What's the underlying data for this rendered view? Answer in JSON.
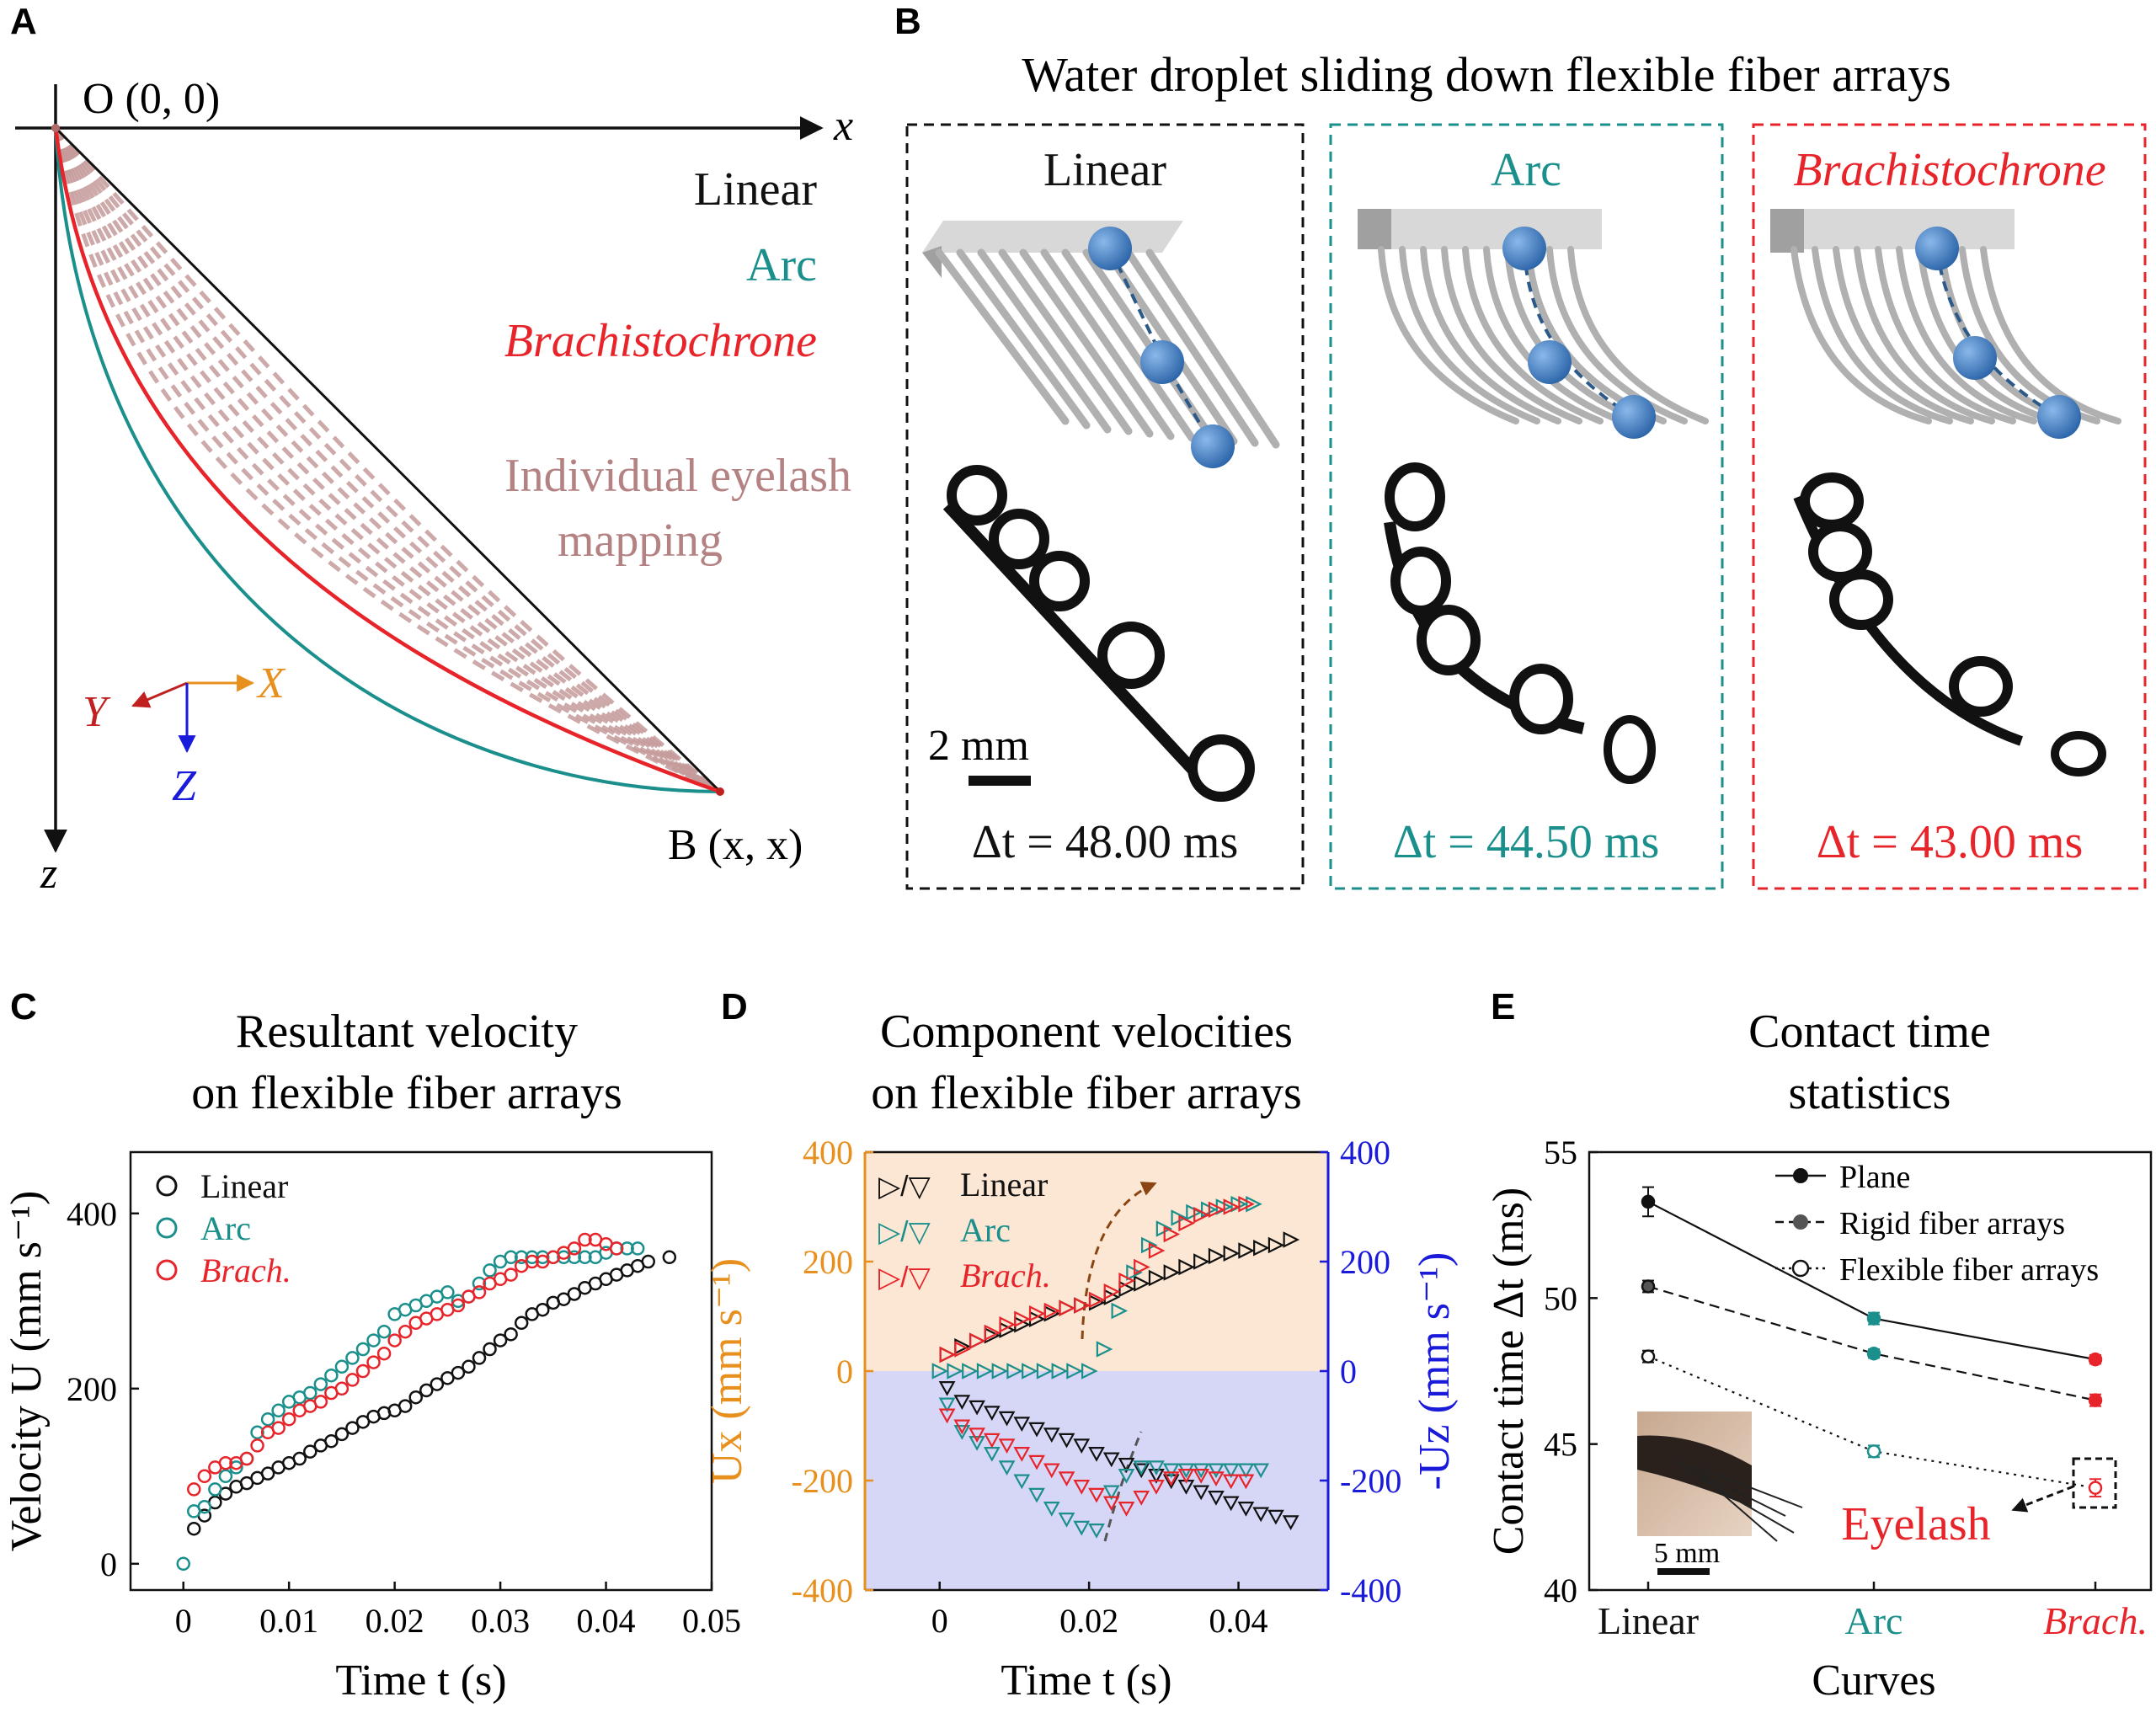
{
  "colors": {
    "black": "#111111",
    "teal": "#1a8f8c",
    "red": "#e8242b",
    "orange": "#e8901e",
    "blue": "#1a1adb",
    "mauve": "#b48282",
    "gray": "#555555",
    "orangeBg": "#fbe7d3",
    "blueBg": "#d6d6f7"
  },
  "panelA": {
    "letter": "A",
    "origin": "O (0, 0)",
    "xaxis": "x",
    "zaxis": "z",
    "endpoint": "B (x, x)",
    "legend_linear": "Linear",
    "legend_arc": "Arc",
    "legend_brach": "Brachistochrone",
    "mapping_line1": "Individual eyelash",
    "mapping_line2": "mapping",
    "frame_x": "X",
    "frame_y": "Y",
    "frame_z": "Z"
  },
  "panelB": {
    "letter": "B",
    "title": "Water droplet sliding down flexible fiber arrays",
    "scalebar": "2 mm",
    "panels": [
      {
        "label": "Linear",
        "dt": "Δt = 48.00 ms"
      },
      {
        "label": "Arc",
        "dt": "Δt = 44.50 ms"
      },
      {
        "label": "Brachistochrone",
        "dt": "Δt = 43.00 ms"
      }
    ]
  },
  "chart_data": [
    {
      "id": "C",
      "type": "scatter",
      "letter": "C",
      "title_line1": "Resultant velocity",
      "title_line2": "on flexible fiber arrays",
      "xlabel": "Time t (s)",
      "ylabel": "Velocity U (mm s⁻¹)",
      "xlim": [
        -0.005,
        0.05
      ],
      "ylim": [
        -30,
        470
      ],
      "xticks": [
        "0",
        "0.01",
        "0.02",
        "0.03",
        "0.04",
        "0.05"
      ],
      "xtick_values": [
        0,
        0.01,
        0.02,
        0.03,
        0.04,
        0.05
      ],
      "yticks": [
        "0",
        "200",
        "400"
      ],
      "ytick_values": [
        0,
        200,
        400
      ],
      "series": [
        {
          "name": "Linear",
          "color": "#111111",
          "x": [
            0.001,
            0.002,
            0.003,
            0.004,
            0.005,
            0.006,
            0.007,
            0.008,
            0.009,
            0.01,
            0.011,
            0.012,
            0.013,
            0.014,
            0.015,
            0.016,
            0.017,
            0.018,
            0.019,
            0.02,
            0.021,
            0.022,
            0.023,
            0.024,
            0.025,
            0.026,
            0.027,
            0.028,
            0.029,
            0.03,
            0.031,
            0.032,
            0.033,
            0.034,
            0.035,
            0.036,
            0.037,
            0.038,
            0.039,
            0.04,
            0.041,
            0.042,
            0.043,
            0.044,
            0.046
          ],
          "y": [
            40,
            55,
            70,
            80,
            88,
            92,
            98,
            103,
            110,
            115,
            120,
            128,
            135,
            140,
            148,
            155,
            162,
            168,
            172,
            175,
            180,
            190,
            198,
            205,
            212,
            218,
            225,
            235,
            245,
            255,
            262,
            275,
            285,
            290,
            298,
            302,
            308,
            315,
            320,
            325,
            330,
            335,
            340,
            345,
            350
          ]
        },
        {
          "name": "Arc",
          "color": "#1a8f8c",
          "x": [
            0,
            0.001,
            0.002,
            0.003,
            0.004,
            0.005,
            0.006,
            0.007,
            0.008,
            0.009,
            0.01,
            0.011,
            0.012,
            0.013,
            0.014,
            0.015,
            0.016,
            0.017,
            0.018,
            0.019,
            0.02,
            0.021,
            0.022,
            0.023,
            0.024,
            0.025,
            0.026,
            0.027,
            0.028,
            0.029,
            0.03,
            0.031,
            0.032,
            0.033,
            0.034,
            0.035,
            0.036,
            0.037,
            0.038,
            0.039,
            0.04,
            0.041,
            0.042,
            0.043
          ],
          "y": [
            0,
            60,
            65,
            85,
            100,
            110,
            120,
            150,
            165,
            175,
            185,
            190,
            195,
            205,
            215,
            225,
            235,
            245,
            255,
            265,
            285,
            290,
            295,
            300,
            305,
            310,
            300,
            305,
            320,
            335,
            345,
            350,
            350,
            350,
            350,
            350,
            350,
            350,
            350,
            350,
            355,
            360,
            360,
            360
          ]
        },
        {
          "name": "Brach.",
          "color": "#e8242b",
          "x": [
            0.001,
            0.002,
            0.003,
            0.004,
            0.005,
            0.006,
            0.007,
            0.008,
            0.009,
            0.01,
            0.011,
            0.012,
            0.013,
            0.014,
            0.015,
            0.016,
            0.017,
            0.018,
            0.019,
            0.02,
            0.021,
            0.022,
            0.023,
            0.024,
            0.025,
            0.026,
            0.027,
            0.028,
            0.029,
            0.03,
            0.031,
            0.032,
            0.033,
            0.034,
            0.035,
            0.036,
            0.037,
            0.038,
            0.039,
            0.04,
            0.041
          ],
          "y": [
            85,
            100,
            110,
            115,
            115,
            120,
            135,
            150,
            155,
            165,
            175,
            180,
            185,
            195,
            200,
            210,
            220,
            230,
            240,
            255,
            265,
            275,
            280,
            285,
            290,
            295,
            305,
            310,
            320,
            325,
            330,
            340,
            345,
            345,
            350,
            355,
            360,
            370,
            370,
            365,
            360
          ]
        }
      ]
    },
    {
      "id": "D",
      "type": "scatter",
      "letter": "D",
      "title_line1": "Component velocities",
      "title_line2": "on flexible fiber arrays",
      "xlabel": "Time t (s)",
      "ylabel_left": "Ux (mm s⁻¹)",
      "ylabel_right": "-Uz (mm s⁻¹)",
      "xlim": [
        -0.01,
        0.052
      ],
      "ylim": [
        -400,
        400
      ],
      "xticks": [
        "0",
        "0.02",
        "0.04"
      ],
      "xtick_values": [
        0,
        0.02,
        0.04
      ],
      "yticks_left": [
        "400",
        "200",
        "0",
        "-200",
        "-400"
      ],
      "yticks_right": [
        "400",
        "200",
        "0",
        "-200",
        "-400"
      ],
      "ytick_values": [
        400,
        200,
        0,
        -200,
        -400
      ],
      "legend": [
        {
          "name": "Linear",
          "marks": "▷/▽",
          "color": "#111111"
        },
        {
          "name": "Arc",
          "marks": "▷/▽",
          "color": "#1a8f8c"
        },
        {
          "name": "Brach.",
          "marks": "▷/▽",
          "color": "#e8242b"
        }
      ],
      "series": [
        {
          "name": "Linear Ux",
          "color": "#111111",
          "marker": "right",
          "x": [
            0.001,
            0.003,
            0.005,
            0.007,
            0.009,
            0.011,
            0.013,
            0.015,
            0.017,
            0.019,
            0.021,
            0.023,
            0.025,
            0.027,
            0.029,
            0.031,
            0.033,
            0.035,
            0.037,
            0.039,
            0.041,
            0.043,
            0.045,
            0.047
          ],
          "y": [
            30,
            45,
            55,
            65,
            75,
            85,
            95,
            105,
            115,
            120,
            125,
            135,
            150,
            160,
            170,
            180,
            190,
            200,
            210,
            215,
            220,
            225,
            230,
            240
          ]
        },
        {
          "name": "Arc Ux",
          "color": "#1a8f8c",
          "marker": "right",
          "x": [
            0,
            0.002,
            0.004,
            0.006,
            0.008,
            0.01,
            0.012,
            0.014,
            0.016,
            0.018,
            0.02,
            0.022,
            0.024,
            0.026,
            0.028,
            0.03,
            0.032,
            0.034,
            0.036,
            0.038,
            0.04,
            0.042
          ],
          "y": [
            0,
            0,
            0,
            0,
            0,
            0,
            0,
            0,
            0,
            0,
            0,
            40,
            110,
            180,
            230,
            260,
            280,
            290,
            295,
            300,
            305,
            305
          ]
        },
        {
          "name": "Brach Ux",
          "color": "#e8242b",
          "marker": "right",
          "x": [
            0.001,
            0.003,
            0.005,
            0.007,
            0.009,
            0.011,
            0.013,
            0.015,
            0.017,
            0.019,
            0.021,
            0.023,
            0.025,
            0.027,
            0.029,
            0.031,
            0.033,
            0.035,
            0.037,
            0.039,
            0.041
          ],
          "y": [
            30,
            40,
            55,
            70,
            85,
            95,
            105,
            110,
            115,
            120,
            130,
            145,
            165,
            190,
            220,
            250,
            270,
            285,
            295,
            300,
            305
          ]
        },
        {
          "name": "Linear -Uz",
          "color": "#111111",
          "marker": "down",
          "x": [
            0.001,
            0.003,
            0.005,
            0.007,
            0.009,
            0.011,
            0.013,
            0.015,
            0.017,
            0.019,
            0.021,
            0.023,
            0.025,
            0.027,
            0.029,
            0.031,
            0.033,
            0.035,
            0.037,
            0.039,
            0.041,
            0.043,
            0.045,
            0.047
          ],
          "y": [
            -30,
            -55,
            -65,
            -75,
            -85,
            -95,
            -105,
            -115,
            -125,
            -135,
            -150,
            -160,
            -170,
            -180,
            -190,
            -200,
            -210,
            -220,
            -230,
            -240,
            -250,
            -260,
            -265,
            -275
          ]
        },
        {
          "name": "Arc -Uz",
          "color": "#1a8f8c",
          "marker": "down",
          "x": [
            0.001,
            0.003,
            0.005,
            0.007,
            0.009,
            0.011,
            0.013,
            0.015,
            0.017,
            0.019,
            0.021,
            0.023,
            0.025,
            0.027,
            0.029,
            0.031,
            0.033,
            0.035,
            0.037,
            0.039,
            0.041,
            0.043
          ],
          "y": [
            -60,
            -110,
            -130,
            -150,
            -175,
            -200,
            -225,
            -250,
            -270,
            -285,
            -290,
            -220,
            -190,
            -175,
            -175,
            -180,
            -180,
            -180,
            -180,
            -180,
            -180,
            -180
          ]
        },
        {
          "name": "Brach -Uz",
          "color": "#e8242b",
          "marker": "down",
          "x": [
            0.001,
            0.003,
            0.005,
            0.007,
            0.009,
            0.011,
            0.013,
            0.015,
            0.017,
            0.019,
            0.021,
            0.023,
            0.025,
            0.027,
            0.029,
            0.031,
            0.033,
            0.035,
            0.037,
            0.039,
            0.041
          ],
          "y": [
            -80,
            -100,
            -115,
            -125,
            -135,
            -150,
            -165,
            -180,
            -195,
            -210,
            -225,
            -240,
            -250,
            -230,
            -210,
            -195,
            -190,
            -190,
            -195,
            -200,
            -200
          ]
        }
      ]
    },
    {
      "id": "E",
      "type": "line",
      "letter": "E",
      "title_line1": "Contact time",
      "title_line2": "statistics",
      "xlabel": "Curves",
      "ylabel": "Contact time Δt (ms)",
      "categories": [
        "Linear",
        "Arc",
        "Brach."
      ],
      "ylim": [
        40,
        55
      ],
      "yticks": [
        "40",
        "45",
        "50",
        "55"
      ],
      "ytick_values": [
        40,
        45,
        50,
        55
      ],
      "series": [
        {
          "name": "Plane",
          "style": "solid",
          "marker": "filled",
          "values": [
            53.3,
            49.3,
            47.9
          ],
          "errors": [
            0.5,
            0.2,
            0.15
          ]
        },
        {
          "name": "Rigid fiber arrays",
          "style": "dashed",
          "marker": "gray",
          "values": [
            50.4,
            48.1,
            46.5
          ],
          "errors": [
            0.2,
            0.15,
            0.2
          ]
        },
        {
          "name": "Flexible fiber arrays",
          "style": "dotted",
          "marker": "open",
          "values": [
            48.0,
            44.75,
            43.5
          ],
          "errors": [
            0.2,
            0.2,
            0.3
          ]
        }
      ],
      "annotation": "Eyelash",
      "scalebar": "5 mm"
    }
  ]
}
